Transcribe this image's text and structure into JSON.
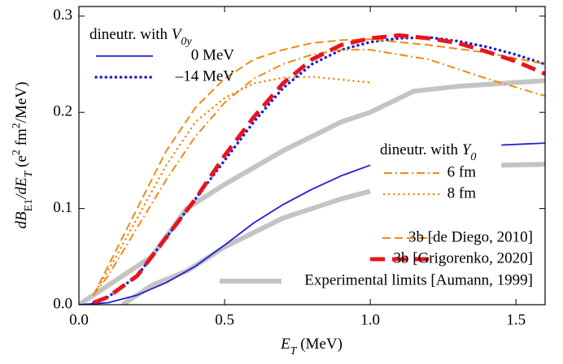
{
  "chart_data": {
    "type": "line",
    "xlim": [
      0,
      1.6
    ],
    "ylim": [
      0,
      0.31
    ],
    "xticks": [
      {
        "value": 0,
        "label": "0.0"
      },
      0.5,
      {
        "value": 1,
        "label": "1.0"
      },
      1.5
    ],
    "yticks": [
      {
        "value": 0,
        "label": "0.0"
      },
      0.1,
      0.2,
      0.3
    ],
    "xlabel_parts": [
      {
        "text": "E",
        "style": "italic"
      },
      {
        "text": "T",
        "style": "italic-sub"
      },
      {
        "text": "  (MeV)",
        "style": "normal"
      }
    ],
    "ylabel_parts": [
      {
        "text": "dB",
        "style": "italic"
      },
      {
        "text": "E1",
        "style": "sub"
      },
      {
        "text": "/dE",
        "style": "italic"
      },
      {
        "text": "T",
        "style": "italic-sub"
      },
      {
        "text": "  (e",
        "style": "normal"
      },
      {
        "text": "2",
        "style": "sup"
      },
      {
        "text": " fm",
        "style": "normal"
      },
      {
        "text": "2",
        "style": "sup"
      },
      {
        "text": "/MeV)",
        "style": "normal"
      }
    ],
    "legend_titles": [
      {
        "text": "dineutr. with ",
        "symbol": "V",
        "subscript": "0y"
      },
      {
        "text": "dineutr. with ",
        "symbol": "Y",
        "subscript": "0"
      }
    ],
    "series": [
      {
        "name": "0 MeV",
        "color": "#1f1fd6",
        "dash": "solid",
        "width": 1.8,
        "x": [
          0,
          0.1,
          0.2,
          0.3,
          0.4,
          0.5,
          0.6,
          0.7,
          0.8,
          0.9,
          1.0,
          1.2,
          1.45,
          1.6
        ],
        "values": [
          0,
          0.002,
          0.01,
          0.023,
          0.04,
          0.062,
          0.085,
          0.104,
          0.12,
          0.134,
          0.145,
          null,
          0.166,
          0.168
        ]
      },
      {
        "name": "–14 MeV",
        "color": "#1f1fd6",
        "dash": "dotted",
        "width": 3.5,
        "x": [
          0.05,
          0.1,
          0.2,
          0.3,
          0.4,
          0.5,
          0.6,
          0.7,
          0.8,
          0.9,
          1.0,
          1.1,
          1.2,
          1.3,
          1.4,
          1.5,
          1.6
        ],
        "values": [
          0.002,
          0.008,
          0.03,
          0.07,
          0.11,
          0.15,
          0.19,
          0.225,
          0.25,
          0.265,
          0.273,
          0.277,
          0.278,
          0.274,
          0.268,
          0.26,
          0.25
        ]
      },
      {
        "name": "6 fm",
        "color": "#f08a12",
        "dash": "dashdot",
        "width": 2,
        "x": [
          0.05,
          0.1,
          0.2,
          0.3,
          0.4,
          0.5,
          0.6,
          0.7,
          0.8,
          0.9,
          1.0,
          1.2,
          1.4,
          1.6
        ],
        "values": [
          0.01,
          0.03,
          0.08,
          0.13,
          0.175,
          0.21,
          0.235,
          0.25,
          0.26,
          0.265,
          0.265,
          0.255,
          0.235,
          0.217
        ]
      },
      {
        "name": "8 fm",
        "color": "#f08a12",
        "dash": "dotted",
        "width": 2.5,
        "x": [
          0.05,
          0.1,
          0.2,
          0.3,
          0.4,
          0.5,
          0.6,
          0.7,
          0.8,
          0.9,
          1.0
        ],
        "values": [
          0.01,
          0.035,
          0.09,
          0.145,
          0.19,
          0.215,
          0.23,
          0.236,
          0.237,
          0.234,
          0.231
        ]
      },
      {
        "name": "3b [de Diego, 2010]",
        "color": "#f08a12",
        "dash": "dashed",
        "width": 2,
        "x": [
          0.05,
          0.1,
          0.2,
          0.3,
          0.4,
          0.5,
          0.6,
          0.7,
          0.8,
          0.9,
          1.0,
          1.2,
          1.4,
          1.6
        ],
        "values": [
          0.01,
          0.04,
          0.1,
          0.16,
          0.205,
          0.235,
          0.255,
          0.265,
          0.272,
          0.275,
          0.276,
          0.27,
          0.262,
          0.25
        ]
      },
      {
        "name": "3b [Grigorenko, 2020]",
        "color": "#e8141e",
        "dash": "longdash",
        "width": 5,
        "x": [
          0.05,
          0.1,
          0.2,
          0.3,
          0.4,
          0.5,
          0.6,
          0.7,
          0.8,
          0.9,
          1.0,
          1.1,
          1.2,
          1.3,
          1.4,
          1.5,
          1.6
        ],
        "values": [
          0.002,
          0.008,
          0.03,
          0.07,
          0.11,
          0.155,
          0.195,
          0.23,
          0.255,
          0.27,
          0.277,
          0.28,
          0.277,
          0.272,
          0.263,
          0.253,
          0.24
        ]
      },
      {
        "name": "Experimental limits [Aumann, 1999]",
        "color": "#c4c4c4",
        "dash": "solid",
        "width": 6,
        "x": [
          0,
          0.15,
          0.25,
          0.37,
          0.5,
          0.7,
          0.9,
          1.0,
          1.15,
          1.3,
          1.45,
          1.6
        ],
        "values": [
          0,
          0.03,
          0.05,
          0.1,
          0.125,
          0.16,
          0.19,
          0.2,
          0.222,
          0.227,
          0.23,
          0.233
        ],
        "lower": [
          null,
          0,
          0.02,
          0.035,
          0.06,
          0.09,
          0.11,
          0.118,
          null,
          null,
          0.145,
          0.146
        ]
      }
    ]
  }
}
